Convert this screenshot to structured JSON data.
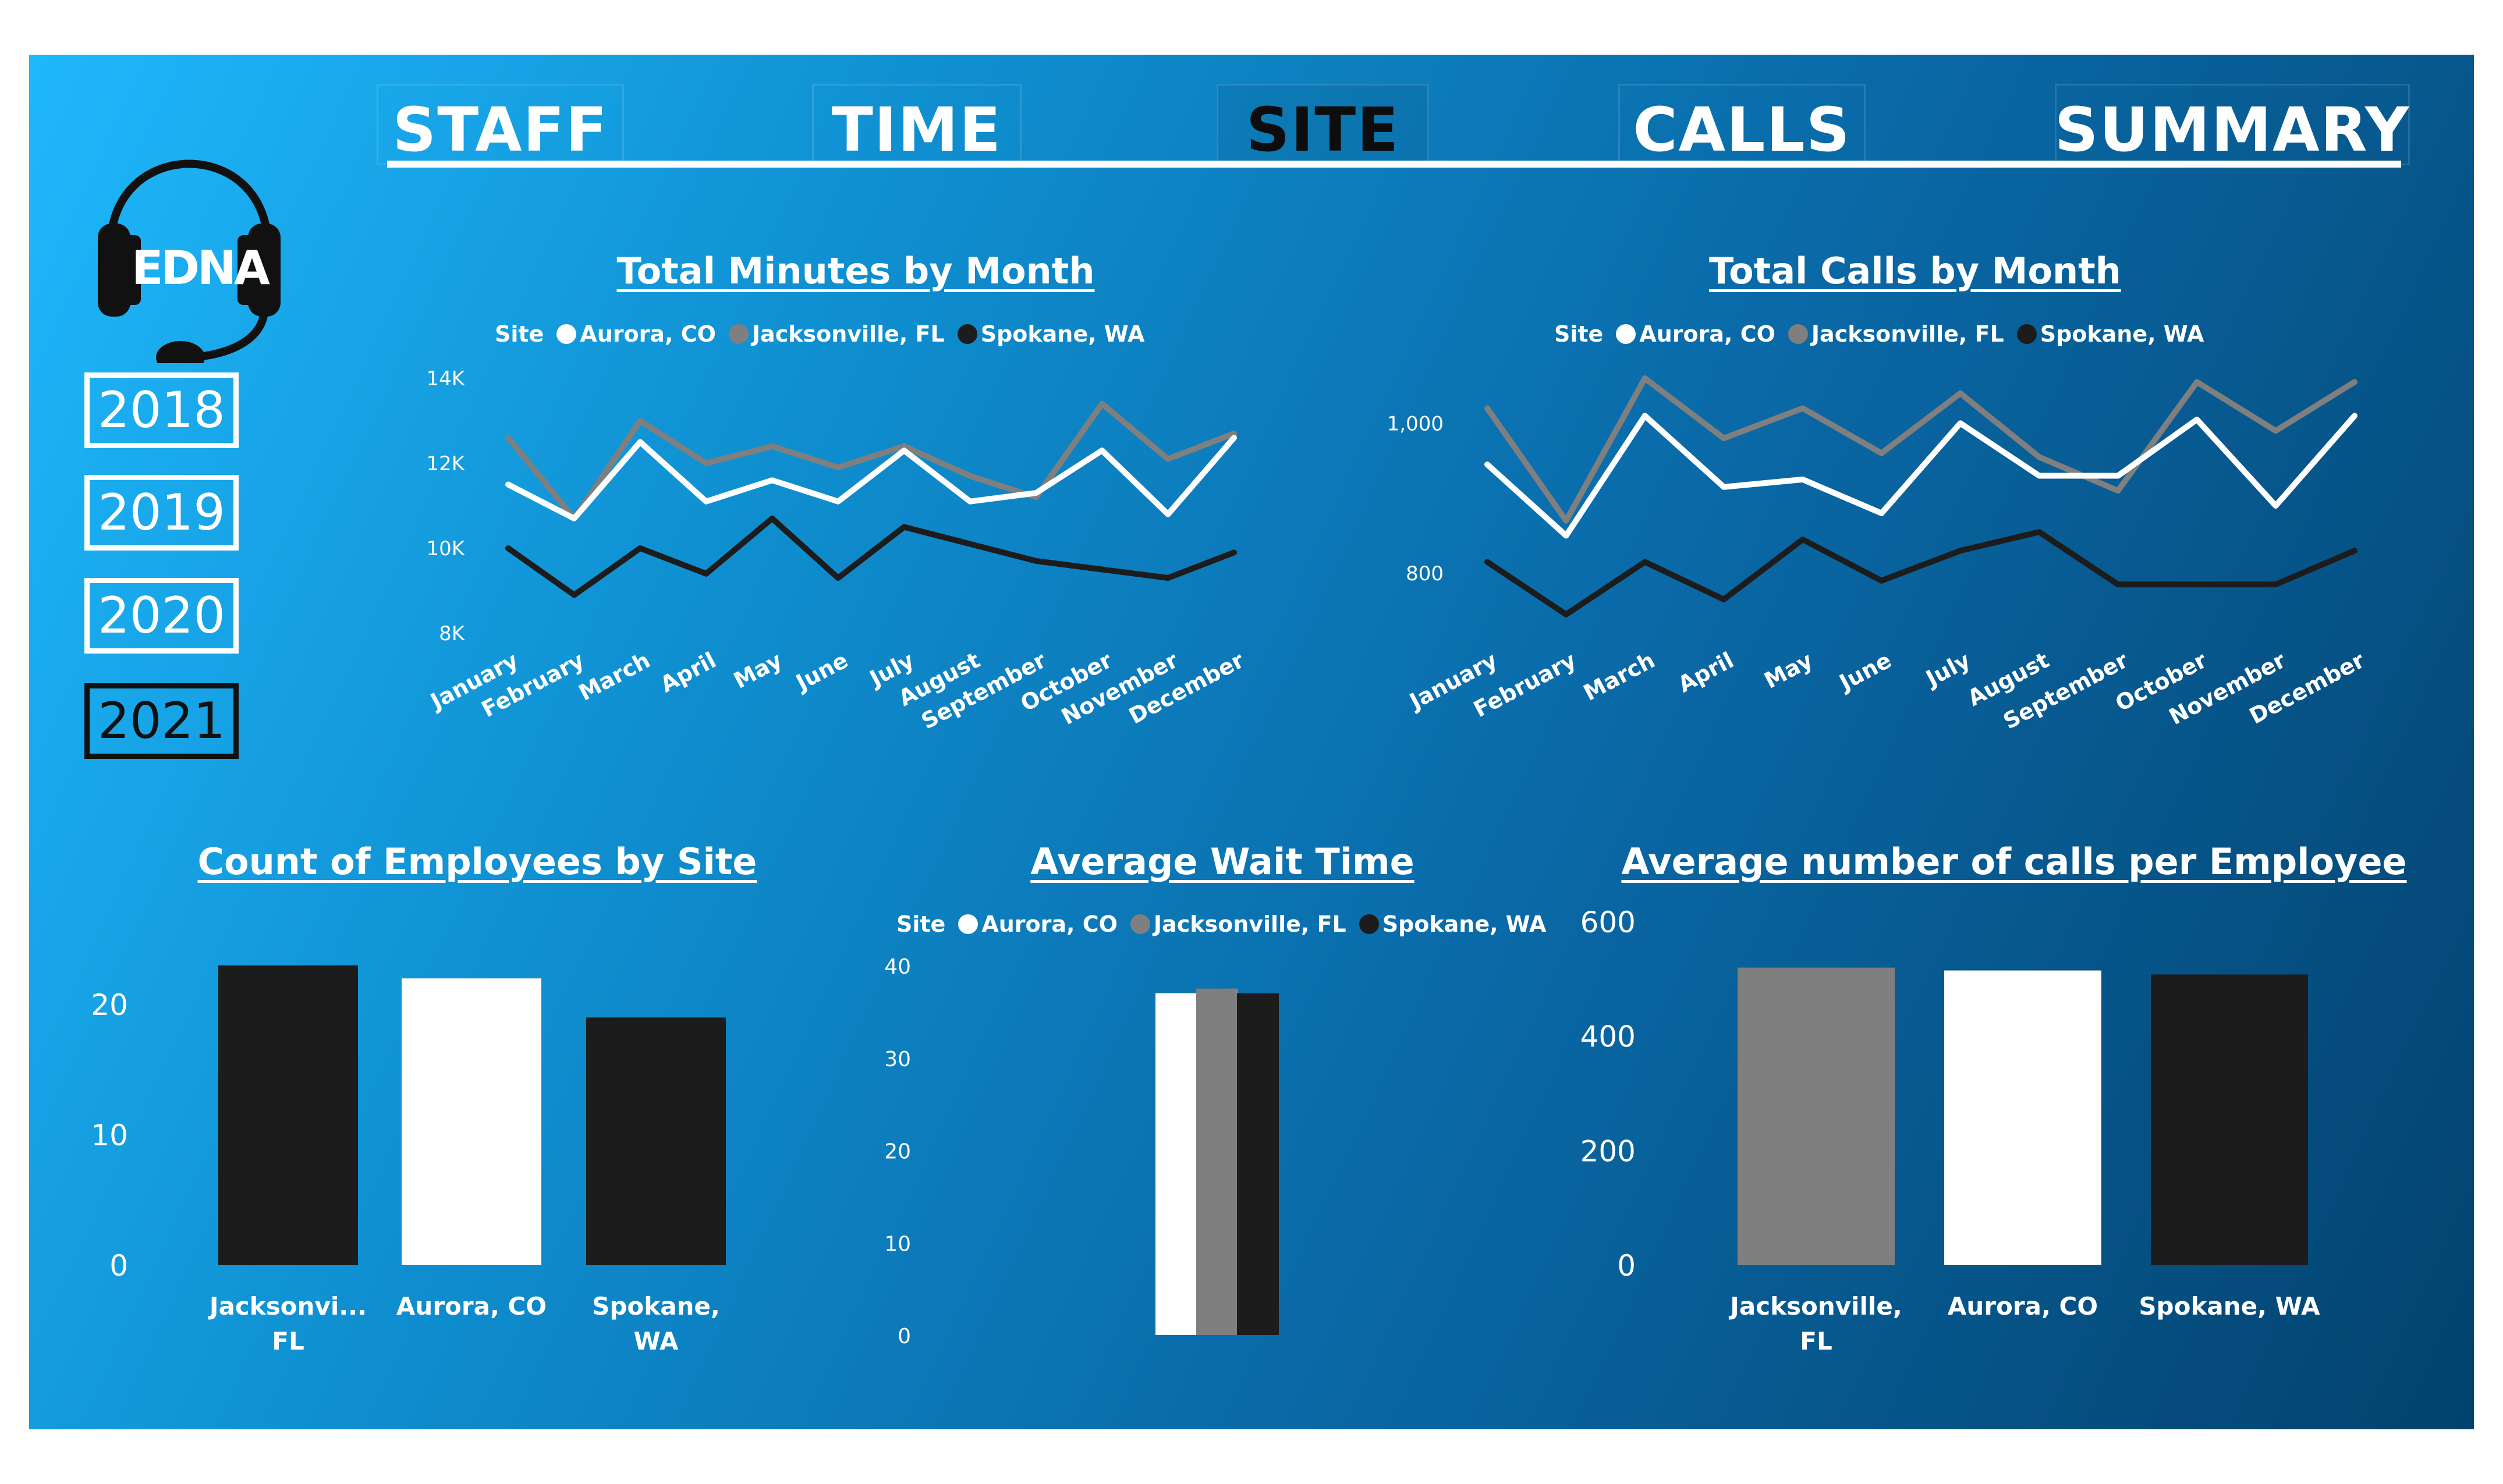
{
  "nav": {
    "tabs": [
      {
        "label": "STAFF",
        "active": false
      },
      {
        "label": "TIME",
        "active": false
      },
      {
        "label": "SITE",
        "active": true
      },
      {
        "label": "CALLS",
        "active": false
      },
      {
        "label": "SUMMARY",
        "active": false
      }
    ]
  },
  "logo": {
    "text": "EDNA",
    "icon": "headset-icon"
  },
  "years": [
    {
      "label": "2018",
      "active": false
    },
    {
      "label": "2019",
      "active": false
    },
    {
      "label": "2020",
      "active": false
    },
    {
      "label": "2021",
      "active": true
    }
  ],
  "colors": {
    "aurora": "#ffffff",
    "jacksonville": "#7f7f7f",
    "spokane": "#1c1c1c",
    "text": "#ffffff"
  },
  "legend": {
    "title": "Site",
    "items": [
      "Aurora, CO",
      "Jacksonville, FL",
      "Spokane, WA"
    ]
  },
  "chart_data": [
    {
      "id": "minutes",
      "type": "line",
      "title": "Total Minutes by Month",
      "legend_title": "Site",
      "categories": [
        "January",
        "February",
        "March",
        "April",
        "May",
        "June",
        "July",
        "August",
        "September",
        "October",
        "November",
        "December"
      ],
      "y_ticks": [
        8000,
        10000,
        12000,
        14000
      ],
      "y_tick_labels": [
        "8K",
        "10K",
        "12K",
        "14K"
      ],
      "ylim": [
        8000,
        14000
      ],
      "series": [
        {
          "name": "Jacksonville, FL",
          "values": [
            12600,
            10700,
            13000,
            12000,
            12400,
            11900,
            12400,
            11700,
            11200,
            13400,
            12100,
            12700
          ]
        },
        {
          "name": "Aurora, CO",
          "values": [
            11500,
            10700,
            12500,
            11100,
            11600,
            11100,
            12300,
            11100,
            11300,
            12300,
            10800,
            12600
          ]
        },
        {
          "name": "Spokane, WA",
          "values": [
            10000,
            8900,
            10000,
            9400,
            10700,
            9300,
            10500,
            10100,
            9700,
            9500,
            9300,
            9900
          ]
        }
      ]
    },
    {
      "id": "calls",
      "type": "line",
      "title": "Total Calls by Month",
      "legend_title": "Site",
      "categories": [
        "January",
        "February",
        "March",
        "April",
        "May",
        "June",
        "July",
        "August",
        "September",
        "October",
        "November",
        "December"
      ],
      "y_ticks": [
        800,
        1000
      ],
      "y_tick_labels": [
        "800",
        "1,000"
      ],
      "ylim": [
        720,
        1060
      ],
      "series": [
        {
          "name": "Jacksonville, FL",
          "values": [
            1020,
            870,
            1060,
            980,
            1020,
            960,
            1040,
            955,
            910,
            1055,
            990,
            1055
          ]
        },
        {
          "name": "Aurora, CO",
          "values": [
            945,
            850,
            1010,
            915,
            925,
            880,
            1000,
            930,
            930,
            1005,
            890,
            1010
          ]
        },
        {
          "name": "Spokane, WA",
          "values": [
            815,
            745,
            815,
            765,
            845,
            790,
            830,
            855,
            785,
            785,
            785,
            830
          ]
        }
      ]
    },
    {
      "id": "employees",
      "type": "bar",
      "title": "Count of Employees by Site",
      "categories": [
        "Jacksonvi... FL",
        "Aurora, CO",
        "Spokane, WA"
      ],
      "values": [
        23,
        22,
        19
      ],
      "y_ticks": [
        0,
        10,
        20
      ],
      "ylim": [
        0,
        25
      ]
    },
    {
      "id": "wait",
      "type": "bar",
      "title": "Average Wait Time",
      "legend_title": "Site",
      "series": [
        {
          "name": "Aurora, CO",
          "values": [
            37
          ]
        },
        {
          "name": "Jacksonville, FL",
          "values": [
            37.5
          ]
        },
        {
          "name": "Spokane, WA",
          "values": [
            37
          ]
        }
      ],
      "y_ticks": [
        0,
        10,
        20,
        30,
        40
      ],
      "ylim": [
        0,
        40
      ]
    },
    {
      "id": "calls_per_employee",
      "type": "bar",
      "title": "Average number of calls per Employee",
      "categories": [
        "Jacksonville, FL",
        "Aurora, CO",
        "Spokane, WA"
      ],
      "values": [
        520,
        515,
        508
      ],
      "y_ticks": [
        0,
        200,
        400,
        600
      ],
      "ylim": [
        0,
        600
      ]
    }
  ]
}
